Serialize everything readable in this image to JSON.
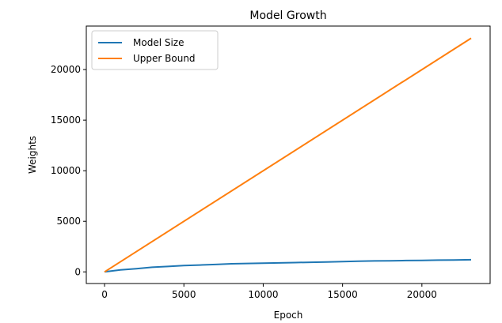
{
  "chart_data": {
    "type": "line",
    "title": "Model Growth",
    "xlabel": "Epoch",
    "ylabel": "Weights",
    "xlim": [
      -1150,
      24300
    ],
    "ylim": [
      -1150,
      24300
    ],
    "xticks": [
      0,
      5000,
      10000,
      15000,
      20000
    ],
    "yticks": [
      0,
      5000,
      10000,
      15000,
      20000
    ],
    "grid": false,
    "legend_position": "top-left",
    "series": [
      {
        "name": "Model Size",
        "color": "#1f77b4",
        "x": [
          0,
          1000,
          2000,
          3000,
          4000,
          5000,
          6000,
          7000,
          8000,
          9000,
          10000,
          11000,
          12000,
          13000,
          14000,
          15000,
          16000,
          17000,
          18000,
          19000,
          20000,
          21000,
          22000,
          23100
        ],
        "y": [
          0,
          200,
          320,
          460,
          540,
          620,
          680,
          730,
          800,
          830,
          860,
          890,
          920,
          950,
          980,
          1020,
          1050,
          1080,
          1100,
          1120,
          1140,
          1160,
          1180,
          1200
        ]
      },
      {
        "name": "Upper Bound",
        "color": "#ff7f0e",
        "x": [
          0,
          23100
        ],
        "y": [
          0,
          23100
        ]
      }
    ]
  }
}
